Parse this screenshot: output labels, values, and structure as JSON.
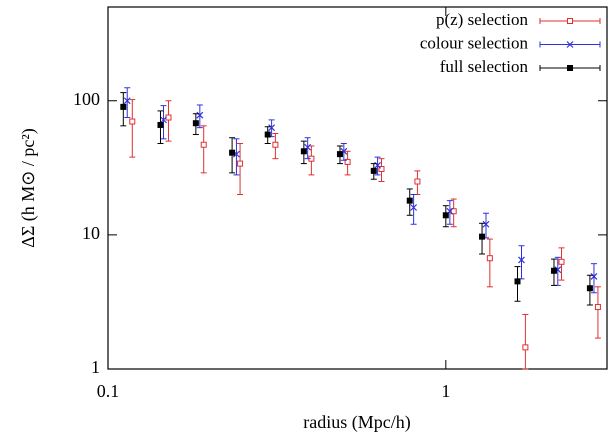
{
  "chart_data": {
    "type": "scatter",
    "xlabel": "radius (Mpc/h)",
    "ylabel": "ΔΣ (h M⊙ / pc²)",
    "xlog": true,
    "ylog": true,
    "xlim": [
      0.1,
      3
    ],
    "ylim": [
      1,
      500
    ],
    "xticks": [
      0.1,
      1
    ],
    "yticks": [
      1,
      10,
      100
    ],
    "legend": "upper right",
    "series": [
      {
        "name": "p(z) selection",
        "color": "#e03030",
        "marker": "square-open",
        "x": [
          0.118,
          0.151,
          0.192,
          0.246,
          0.313,
          0.4,
          0.512,
          0.645,
          0.824,
          1.055,
          1.35,
          1.72,
          2.2,
          2.82
        ],
        "values": [
          70,
          75,
          47,
          34,
          47,
          37,
          35,
          31,
          25,
          15,
          6.7,
          1.45,
          6.3,
          2.9
        ],
        "errors": [
          32,
          25,
          18,
          14,
          10,
          9,
          7,
          6,
          5,
          3.5,
          2.6,
          1.1,
          1.7,
          1.2
        ]
      },
      {
        "name": "colour selection",
        "color": "#3030e0",
        "marker": "cross",
        "x": [
          0.114,
          0.146,
          0.187,
          0.24,
          0.305,
          0.39,
          0.499,
          0.628,
          0.803,
          1.028,
          1.315,
          1.675,
          2.145,
          2.745
        ],
        "values": [
          100,
          72,
          78,
          40,
          63,
          45,
          42,
          33,
          16,
          15,
          12,
          6.5,
          5.5,
          4.9
        ],
        "errors": [
          25,
          20,
          15,
          12,
          9,
          8,
          6,
          5,
          4,
          3,
          2.5,
          1.8,
          1.3,
          1.2
        ]
      },
      {
        "name": "full selection",
        "color": "#000000",
        "marker": "square-filled",
        "x": [
          0.111,
          0.143,
          0.182,
          0.233,
          0.297,
          0.38,
          0.486,
          0.612,
          0.782,
          1.0,
          1.28,
          1.63,
          2.09,
          2.67
        ],
        "values": [
          90,
          66,
          68,
          41,
          56,
          42,
          40,
          30,
          18,
          14,
          9.7,
          4.5,
          5.4,
          4.0
        ],
        "errors": [
          25,
          18,
          12,
          12,
          8,
          8,
          6,
          4,
          4,
          2.5,
          2.5,
          1.3,
          1.2,
          1.0
        ]
      }
    ]
  }
}
